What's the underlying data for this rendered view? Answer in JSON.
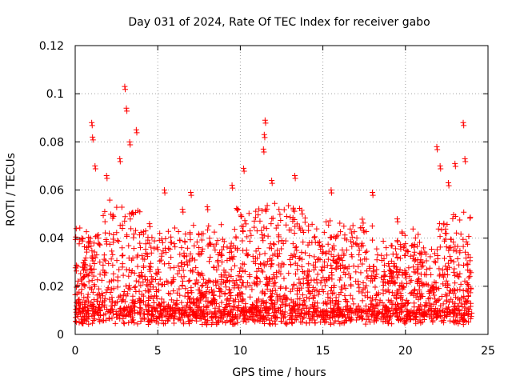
{
  "chart_data": {
    "type": "scatter",
    "title": "Day 031 of 2024, Rate Of TEC Index for receiver gabo",
    "xlabel": "GPS time / hours",
    "ylabel": "ROTI / TECUs",
    "xlim": [
      0,
      25
    ],
    "ylim": [
      0,
      0.12
    ],
    "xticks": [
      0,
      5,
      10,
      15,
      20,
      25
    ],
    "xtick_labels": [
      "0",
      "5",
      "10",
      "15",
      "20",
      "25"
    ],
    "yticks": [
      0,
      0.02,
      0.04,
      0.06,
      0.08,
      0.1,
      0.12
    ],
    "ytick_labels": [
      "0",
      "0.02",
      "0.04",
      "0.06",
      "0.08",
      "0.1",
      "0.12"
    ],
    "grid": true,
    "marker": "+",
    "color": "#ff0000",
    "series": [
      {
        "name": "ROTI",
        "peaks": [
          {
            "x": 0.4,
            "y": 0.04
          },
          {
            "x": 1.0,
            "y": 0.088
          },
          {
            "x": 1.05,
            "y": 0.082
          },
          {
            "x": 1.2,
            "y": 0.07
          },
          {
            "x": 1.9,
            "y": 0.066
          },
          {
            "x": 2.7,
            "y": 0.073
          },
          {
            "x": 3.0,
            "y": 0.103
          },
          {
            "x": 3.1,
            "y": 0.094
          },
          {
            "x": 3.3,
            "y": 0.08
          },
          {
            "x": 3.7,
            "y": 0.085
          },
          {
            "x": 4.5,
            "y": 0.046
          },
          {
            "x": 5.4,
            "y": 0.06
          },
          {
            "x": 6.5,
            "y": 0.052
          },
          {
            "x": 7.0,
            "y": 0.059
          },
          {
            "x": 8.0,
            "y": 0.053
          },
          {
            "x": 9.5,
            "y": 0.062
          },
          {
            "x": 10.2,
            "y": 0.069
          },
          {
            "x": 11.5,
            "y": 0.089
          },
          {
            "x": 11.45,
            "y": 0.083
          },
          {
            "x": 11.4,
            "y": 0.077
          },
          {
            "x": 11.9,
            "y": 0.064
          },
          {
            "x": 13.3,
            "y": 0.066
          },
          {
            "x": 15.5,
            "y": 0.06
          },
          {
            "x": 18.0,
            "y": 0.059
          },
          {
            "x": 19.5,
            "y": 0.048
          },
          {
            "x": 21.9,
            "y": 0.078
          },
          {
            "x": 22.1,
            "y": 0.07
          },
          {
            "x": 22.6,
            "y": 0.063
          },
          {
            "x": 23.0,
            "y": 0.071
          },
          {
            "x": 23.5,
            "y": 0.088
          },
          {
            "x": 23.6,
            "y": 0.073
          }
        ]
      }
    ]
  }
}
